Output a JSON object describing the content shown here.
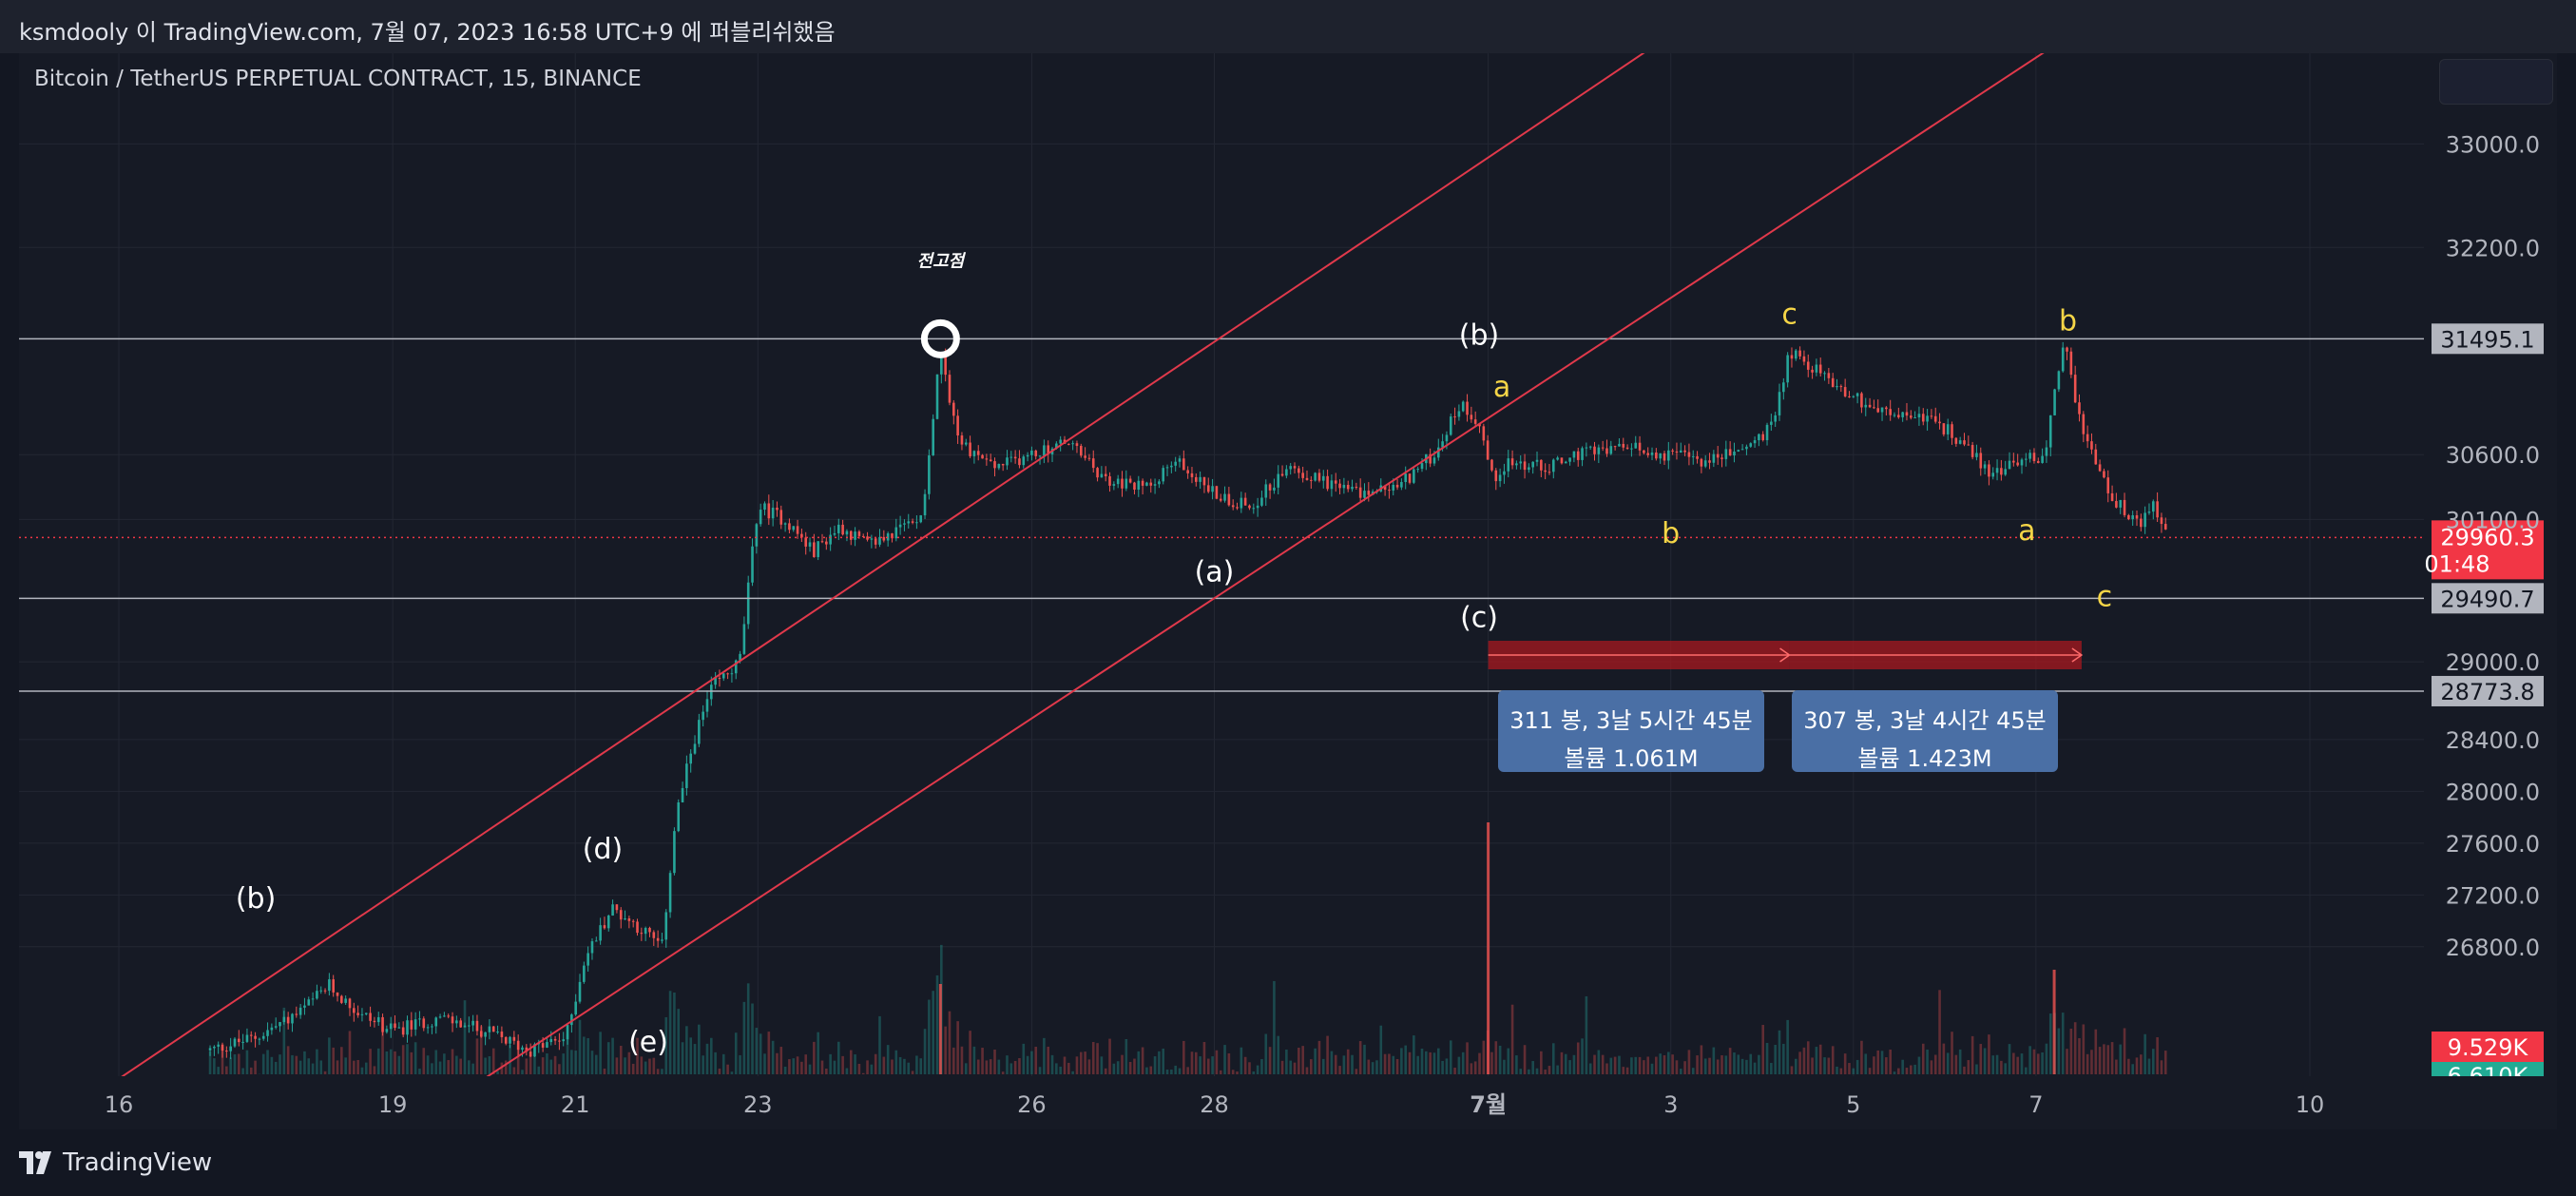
{
  "header": {
    "publish_text": "ksmdooly 이 TradingView.com, 7월 07, 2023 16:58 UTC+9 에 퍼블리쉬했음"
  },
  "footer": {
    "brand": "TradingView"
  },
  "colors": {
    "up": "#26a69a",
    "down": "#ef5350",
    "channel": "#e0394b",
    "label_yellow": "#f5d547",
    "price_badge": "#f23645",
    "info_box": "#4a6fa5"
  },
  "chart_data": {
    "type": "candlestick",
    "title": "Bitcoin / TetherUS PERPETUAL CONTRACT, 15, BINANCE",
    "ylim": [
      25800,
      33700
    ],
    "y_ticks": [
      "33000.0",
      "32200.0",
      "30600.0",
      "30100.0",
      "29000.0",
      "28400.0",
      "28000.0",
      "27600.0",
      "27200.0",
      "26800.0"
    ],
    "x_ticks": [
      {
        "label": "16",
        "day": 15
      },
      {
        "label": "19",
        "day": 18
      },
      {
        "label": "21",
        "day": 20
      },
      {
        "label": "23",
        "day": 22
      },
      {
        "label": "26",
        "day": 25
      },
      {
        "label": "28",
        "day": 27
      },
      {
        "label": "7월",
        "day": 30,
        "bold": true
      },
      {
        "label": "3",
        "day": 32
      },
      {
        "label": "5",
        "day": 34
      },
      {
        "label": "7",
        "day": 36
      },
      {
        "label": "10",
        "day": 39
      }
    ],
    "price_path": [
      [
        16.0,
        26000
      ],
      [
        16.5,
        26100
      ],
      [
        17.0,
        26300
      ],
      [
        17.3,
        26500
      ],
      [
        17.6,
        26300
      ],
      [
        18.0,
        26150
      ],
      [
        18.5,
        26250
      ],
      [
        19.0,
        26150
      ],
      [
        19.5,
        26000
      ],
      [
        19.9,
        26100
      ],
      [
        20.1,
        26700
      ],
      [
        20.4,
        27100
      ],
      [
        20.7,
        26950
      ],
      [
        20.95,
        26800
      ],
      [
        21.1,
        27800
      ],
      [
        21.3,
        28400
      ],
      [
        21.5,
        28800
      ],
      [
        21.8,
        29000
      ],
      [
        22.0,
        30200
      ],
      [
        22.3,
        30100
      ],
      [
        22.6,
        29850
      ],
      [
        22.9,
        30050
      ],
      [
        23.2,
        29900
      ],
      [
        23.5,
        30000
      ],
      [
        23.8,
        30150
      ],
      [
        24.0,
        31400
      ],
      [
        24.2,
        30700
      ],
      [
        24.6,
        30500
      ],
      [
        25.0,
        30600
      ],
      [
        25.4,
        30700
      ],
      [
        25.8,
        30400
      ],
      [
        26.2,
        30350
      ],
      [
        26.6,
        30550
      ],
      [
        27.0,
        30300
      ],
      [
        27.4,
        30200
      ],
      [
        27.8,
        30500
      ],
      [
        28.2,
        30400
      ],
      [
        28.6,
        30300
      ],
      [
        29.0,
        30350
      ],
      [
        29.4,
        30600
      ],
      [
        29.7,
        31000
      ],
      [
        29.9,
        30850
      ],
      [
        30.05,
        30400
      ],
      [
        30.2,
        30550
      ],
      [
        30.6,
        30500
      ],
      [
        31.0,
        30600
      ],
      [
        31.5,
        30650
      ],
      [
        32.0,
        30600
      ],
      [
        32.4,
        30550
      ],
      [
        32.8,
        30650
      ],
      [
        33.1,
        30800
      ],
      [
        33.3,
        31400
      ],
      [
        33.6,
        31250
      ],
      [
        34.0,
        31050
      ],
      [
        34.4,
        30900
      ],
      [
        34.8,
        30900
      ],
      [
        35.2,
        30700
      ],
      [
        35.5,
        30450
      ],
      [
        35.8,
        30550
      ],
      [
        36.1,
        30600
      ],
      [
        36.3,
        31500
      ],
      [
        36.5,
        30800
      ],
      [
        36.8,
        30300
      ],
      [
        37.1,
        30050
      ],
      [
        37.3,
        30200
      ],
      [
        37.45,
        29960
      ]
    ],
    "horizontal_lines": [
      {
        "price": 31495.1,
        "label": "31495.1"
      },
      {
        "price": 29490.7,
        "label": "29490.7"
      },
      {
        "price": 28773.8,
        "label": "28773.8"
      }
    ],
    "last_price": {
      "price": 29960.3,
      "label": "29960.3",
      "countdown": "01:48"
    },
    "channel_lines": [
      {
        "from": [
          15.0,
          25780
        ],
        "to": [
          32.9,
          34270
        ]
      },
      {
        "from": [
          19.0,
          25780
        ],
        "to": [
          37.0,
          34130
        ]
      }
    ],
    "annotations": [
      {
        "text": "전고점",
        "day": 24.0,
        "price": 32050,
        "color": "#ffffff",
        "size": "small",
        "italic": true
      },
      {
        "text": "(b)",
        "day": 16.5,
        "price": 27100,
        "color": "#ffffff"
      },
      {
        "text": "(d)",
        "day": 20.3,
        "price": 27480,
        "color": "#ffffff"
      },
      {
        "text": "(e)",
        "day": 20.8,
        "price": 25990,
        "color": "#ffffff"
      },
      {
        "text": "(a)",
        "day": 27.0,
        "price": 29620,
        "color": "#ffffff"
      },
      {
        "text": "(b)",
        "day": 29.9,
        "price": 31450,
        "color": "#ffffff"
      },
      {
        "text": "(c)",
        "day": 29.9,
        "price": 29270,
        "color": "#ffffff"
      },
      {
        "text": "a",
        "day": 30.15,
        "price": 31050,
        "color": "#f5d547"
      },
      {
        "text": "b",
        "day": 32.0,
        "price": 29920,
        "color": "#f5d547"
      },
      {
        "text": "c",
        "day": 33.3,
        "price": 31610,
        "color": "#f5d547"
      },
      {
        "text": "a",
        "day": 35.9,
        "price": 29940,
        "color": "#f5d547"
      },
      {
        "text": "b",
        "day": 36.35,
        "price": 31560,
        "color": "#f5d547"
      },
      {
        "text": "c",
        "day": 36.75,
        "price": 29430,
        "color": "#f5d547"
      }
    ],
    "ranges": [
      {
        "from_day": 30.0,
        "to_day": 33.3,
        "bars": "311 봉, 3날 5시간 45분",
        "volume": "볼륨 1.061M"
      },
      {
        "from_day": 33.3,
        "to_day": 36.5,
        "bars": "307 봉, 3날 4시간 45분",
        "volume": "볼륨 1.423M"
      }
    ],
    "volume": {
      "label": "9.529K",
      "label2": "6.610K"
    },
    "grid": true
  }
}
